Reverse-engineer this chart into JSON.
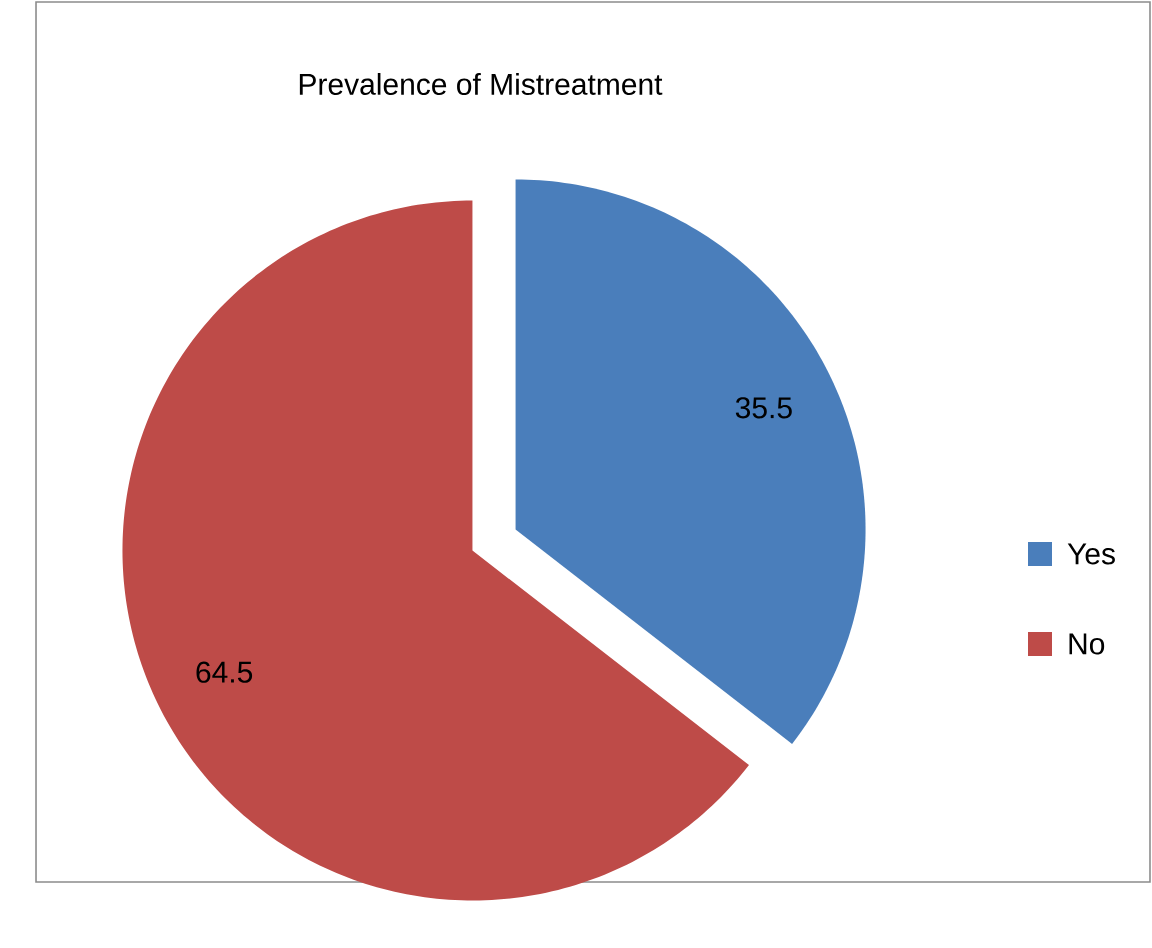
{
  "chart_data": {
    "type": "pie",
    "title": "Prevalence of Mistreatment",
    "categories": [
      "Yes",
      "No"
    ],
    "values": [
      35.5,
      64.5
    ],
    "colors": [
      "#4a7ebb",
      "#be4b48"
    ],
    "data_labels": true,
    "legend": "right"
  }
}
